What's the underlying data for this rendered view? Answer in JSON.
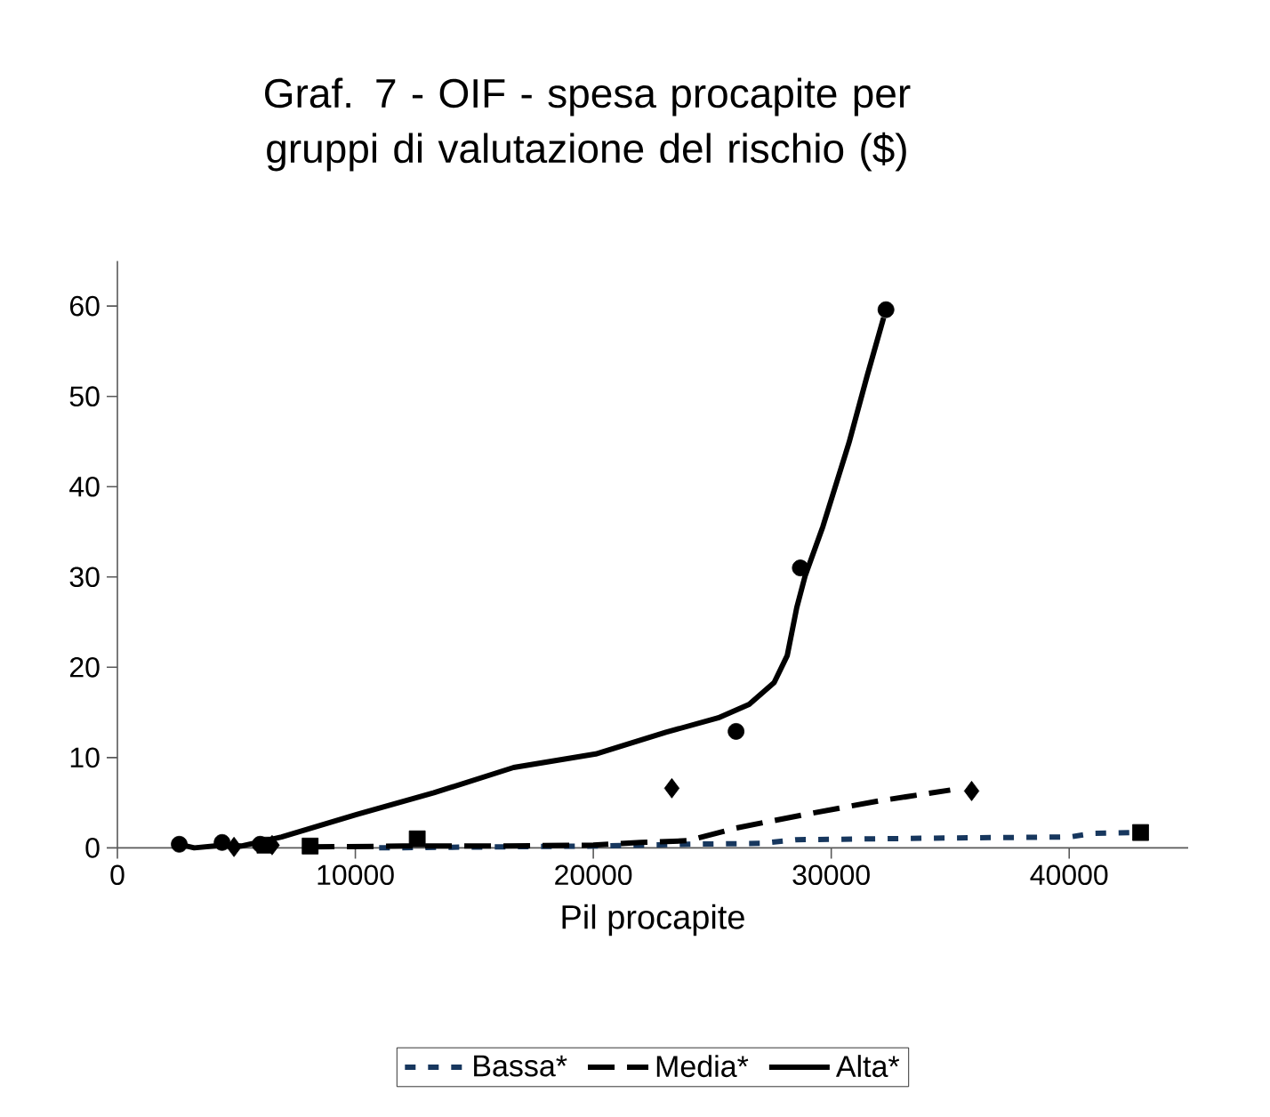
{
  "chart_data": {
    "type": "scatter",
    "title": "Graf. 7 - OIF - spesa procapite per gruppi di valutazione del rischio ($)",
    "xlabel": "Pil procapite",
    "xlim": [
      0,
      45000
    ],
    "ylim": [
      0,
      65
    ],
    "xticks": [
      0,
      10000,
      20000,
      30000,
      40000
    ],
    "yticks": [
      0,
      10,
      20,
      30,
      40,
      50,
      60
    ],
    "grid": false,
    "legend": "bottom",
    "series": [
      {
        "marker": "square",
        "color": "#000000",
        "x": [
          6200,
          8100,
          12600,
          43000
        ],
        "values": [
          0.3,
          0.2,
          1.0,
          1.7
        ]
      },
      {
        "marker": "diamond",
        "color": "#000000",
        "x": [
          4900,
          6500,
          23300,
          35900
        ],
        "values": [
          0.1,
          0.3,
          6.6,
          6.3
        ]
      },
      {
        "marker": "circle",
        "color": "#000000",
        "x": [
          2600,
          4400,
          6000,
          26000,
          28700,
          32300
        ],
        "values": [
          0.4,
          0.6,
          0.4,
          12.9,
          31.0,
          59.6
        ]
      },
      {
        "type": "line",
        "name": "Bassa*",
        "line_style": "dotted",
        "color": "#17375e",
        "x": [
          11000,
          20000,
          24000,
          27000,
          28500,
          35000,
          40000,
          41000,
          43000
        ],
        "values": [
          0.0,
          0.2,
          0.4,
          0.5,
          0.9,
          1.1,
          1.2,
          1.6,
          1.7
        ]
      },
      {
        "type": "line",
        "name": "Media*",
        "line_style": "dashed",
        "color": "#000000",
        "x": [
          8000,
          12000,
          16000,
          20000,
          22000,
          24000,
          26000,
          28900,
          32000,
          35000
        ],
        "values": [
          0.1,
          0.2,
          0.2,
          0.3,
          0.6,
          0.8,
          2.2,
          3.7,
          5.2,
          6.4
        ]
      },
      {
        "type": "line",
        "name": "Alta*",
        "line_style": "solid",
        "color": "#000000",
        "x": [
          2600,
          3230,
          4470,
          5200,
          6900,
          10050,
          13300,
          16650,
          20100,
          23050,
          25250,
          26550,
          27600,
          28150,
          28550,
          28900,
          29650,
          30750,
          31500,
          32200
        ],
        "values": [
          0.4,
          0.0,
          0.3,
          0.2,
          1.2,
          3.7,
          6.1,
          8.9,
          10.4,
          12.8,
          14.4,
          15.9,
          18.3,
          21.3,
          26.6,
          30.1,
          35.6,
          44.9,
          52.2,
          58.7
        ]
      }
    ]
  }
}
